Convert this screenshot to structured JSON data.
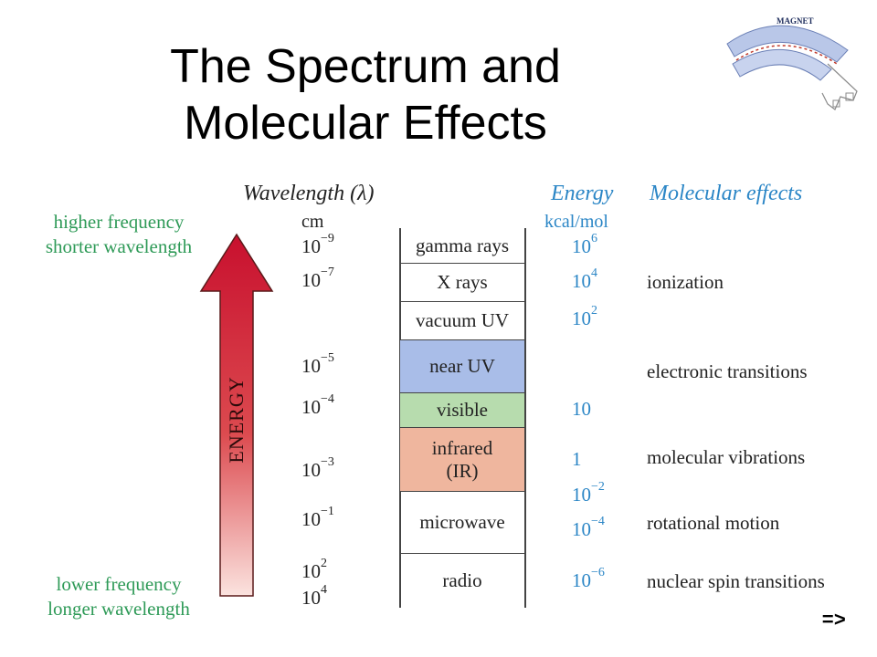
{
  "title_line1": "The Spectrum and",
  "title_line2": "Molecular Effects",
  "logo_label": "MAGNET",
  "headers": {
    "wavelength": "Wavelength (λ)",
    "wavelength_unit": "cm",
    "energy": "Energy",
    "energy_unit": "kcal/mol",
    "effects": "Molecular effects"
  },
  "top_label": [
    "higher frequency",
    "shorter wavelength"
  ],
  "bottom_label": [
    "lower frequency",
    "longer wavelength"
  ],
  "arrow_label": "ENERGY",
  "wavelengths": [
    {
      "base": "10",
      "exp": "−9"
    },
    {
      "base": "10",
      "exp": "−7"
    },
    {
      "base": "10",
      "exp": "−5"
    },
    {
      "base": "10",
      "exp": "−4"
    },
    {
      "base": "10",
      "exp": "−3"
    },
    {
      "base": "10",
      "exp": "−1"
    },
    {
      "base": "10",
      "exp": "2"
    },
    {
      "base": "10",
      "exp": "4"
    }
  ],
  "bands": [
    {
      "label": "gamma rays",
      "color": "#ffffff"
    },
    {
      "label": "X rays",
      "color": "#ffffff"
    },
    {
      "label": "vacuum UV",
      "color": "#ffffff"
    },
    {
      "label": "near UV",
      "color": "#a9bde8"
    },
    {
      "label": "visible",
      "color": "#b7dcae"
    },
    {
      "label": "infrared",
      "label2": "(IR)",
      "color": "#efb69e"
    },
    {
      "label": "microwave",
      "color": "#ffffff"
    },
    {
      "label": "radio",
      "color": "#ffffff"
    }
  ],
  "energies": [
    {
      "base": "10",
      "exp": "6"
    },
    {
      "base": "10",
      "exp": "4"
    },
    {
      "base": "10",
      "exp": "2"
    },
    {
      "base": "10",
      "exp": ""
    },
    {
      "base": "1",
      "exp": ""
    },
    {
      "base": "10",
      "exp": "−2"
    },
    {
      "base": "10",
      "exp": "−4"
    },
    {
      "base": "10",
      "exp": "−6"
    }
  ],
  "effects": [
    "ionization",
    "electronic transitions",
    "molecular vibrations",
    "rotational motion",
    "nuclear spin transitions"
  ],
  "nav_next": "=>",
  "colors": {
    "arrow_top": "#c8102e",
    "arrow_bottom": "#fbe3df",
    "green_text": "#2e9a57",
    "blue_text": "#2b86c6"
  }
}
